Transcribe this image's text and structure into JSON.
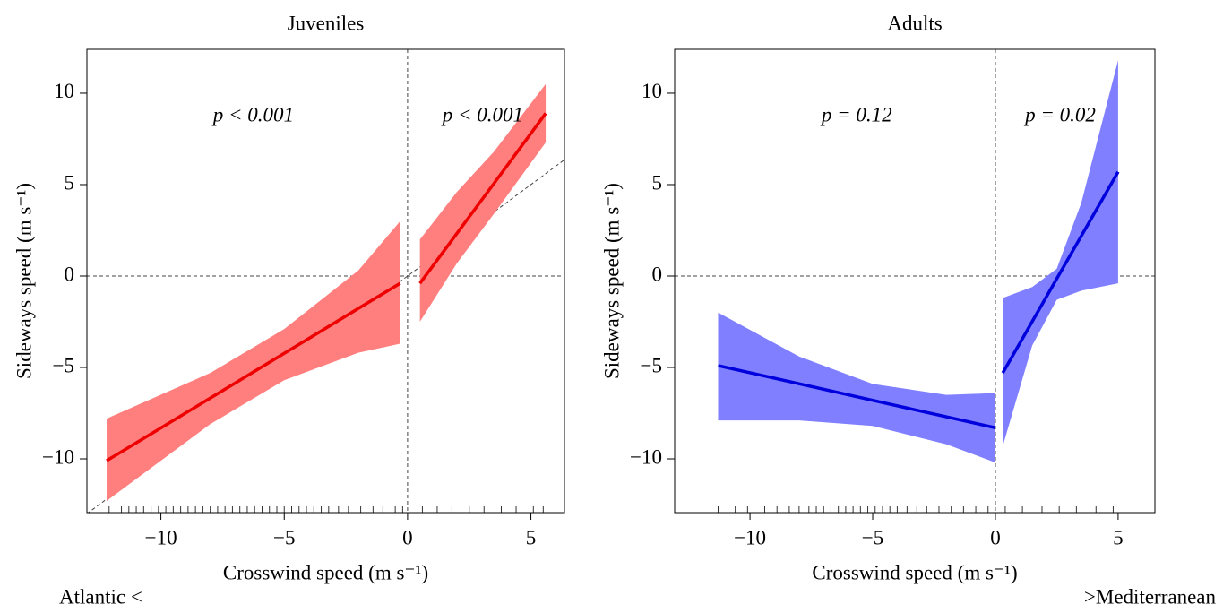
{
  "chart_data": [
    {
      "type": "line",
      "title": "Juveniles",
      "x_label": "Crosswind speed (m s⁻¹)",
      "y_label": "Sideways speed (m s⁻¹)",
      "color": "#ee0000",
      "band_color": "#ff7f7f",
      "identity_line": true,
      "xlim": [
        -13.0,
        6.36
      ],
      "ylim": [
        -12.94,
        12.4
      ],
      "xticks": [
        {
          "value": -10,
          "label": "−10"
        },
        {
          "value": -5,
          "label": "−5"
        },
        0,
        5
      ],
      "yticks": [
        {
          "value": -10,
          "label": "−10"
        },
        {
          "value": -5,
          "label": "−5"
        },
        0,
        5,
        10
      ],
      "segments": [
        {
          "annotation": "p < 0.001",
          "x": [
            -12.2,
            -8,
            -5,
            -2,
            -0.3
          ],
          "values": [
            -10.1,
            -6.68,
            -4.23,
            -1.78,
            -0.4
          ],
          "upper": [
            -7.8,
            -5.3,
            -2.9,
            0.3,
            3.0
          ],
          "lower": [
            -12.3,
            -8.1,
            -5.7,
            -4.2,
            -3.7
          ]
        },
        {
          "annotation": "p < 0.001",
          "x": [
            0.5,
            2,
            3.5,
            5.6
          ],
          "values": [
            -0.4,
            2.33,
            5.06,
            8.9
          ],
          "upper": [
            2.0,
            4.6,
            6.8,
            10.5
          ],
          "lower": [
            -2.5,
            0.7,
            3.4,
            7.3
          ]
        }
      ],
      "rug": [
        -12.1,
        -11.6,
        -11.3,
        -11.0,
        -10.7,
        -10.4,
        -10.1,
        -9.8,
        -9.5,
        -9.2,
        -8.9,
        -8.6,
        -8.3,
        -8.0,
        -7.7,
        -7.4,
        -7.1,
        -6.8,
        -6.5,
        -6.2,
        -5.9,
        -5.6,
        -5.3,
        -5.0,
        -4.7,
        -4.4,
        -4.1,
        -3.8,
        -3.5,
        -3.2,
        -2.8,
        -2.4,
        -1.9,
        -1.4,
        -1.0,
        -0.5,
        -0.2,
        0.6,
        1.2,
        1.8,
        2.5,
        3.1,
        3.8,
        4.4,
        5.1,
        5.5
      ],
      "footer": "Atlantic <"
    },
    {
      "type": "line",
      "title": "Adults",
      "x_label": "Crosswind speed (m s⁻¹)",
      "y_label": "Sideways speed (m s⁻¹)",
      "color": "#0000dd",
      "band_color": "#7f7fff",
      "identity_line": false,
      "xlim": [
        -13.07,
        6.5
      ],
      "ylim": [
        -12.94,
        12.4
      ],
      "xticks": [
        {
          "value": -10,
          "label": "−10"
        },
        {
          "value": -5,
          "label": "−5"
        },
        0,
        5
      ],
      "yticks": [
        {
          "value": -10,
          "label": "−10"
        },
        {
          "value": -5,
          "label": "−5"
        },
        0,
        5,
        10
      ],
      "segments": [
        {
          "annotation": "p = 0.12",
          "x": [
            -11.3,
            -8,
            -5,
            -2,
            0
          ],
          "values": [
            -4.9,
            -5.89,
            -6.8,
            -7.7,
            -8.3
          ],
          "upper": [
            -2.0,
            -4.4,
            -5.9,
            -6.5,
            -6.4
          ],
          "lower": [
            -7.9,
            -7.9,
            -8.2,
            -9.2,
            -10.2
          ]
        },
        {
          "annotation": "p = 0.02",
          "x": [
            0.3,
            1.5,
            2.5,
            3.5,
            5.0
          ],
          "values": [
            -5.3,
            -2.49,
            -0.15,
            2.19,
            5.7
          ],
          "upper": [
            -1.2,
            -0.6,
            0.4,
            4.0,
            11.8
          ],
          "lower": [
            -9.3,
            -3.8,
            -1.3,
            -0.8,
            -0.4
          ]
        }
      ],
      "rug": [
        -11.3,
        -10.6,
        -10.1,
        -9.4,
        -8.9,
        -8.4,
        -8.0,
        -7.6,
        -7.3,
        -7.0,
        -6.7,
        -6.4,
        -6.1,
        -5.8,
        -5.5,
        -5.2,
        -4.9,
        -4.6,
        -4.3,
        -4.0,
        -3.6,
        -3.2,
        -2.8,
        -2.3,
        -1.8,
        -1.3,
        -0.8,
        -0.3,
        0.4,
        1.1,
        1.9,
        2.6,
        3.3,
        4.1,
        4.8
      ],
      "footer": ">Mediterranean"
    }
  ]
}
